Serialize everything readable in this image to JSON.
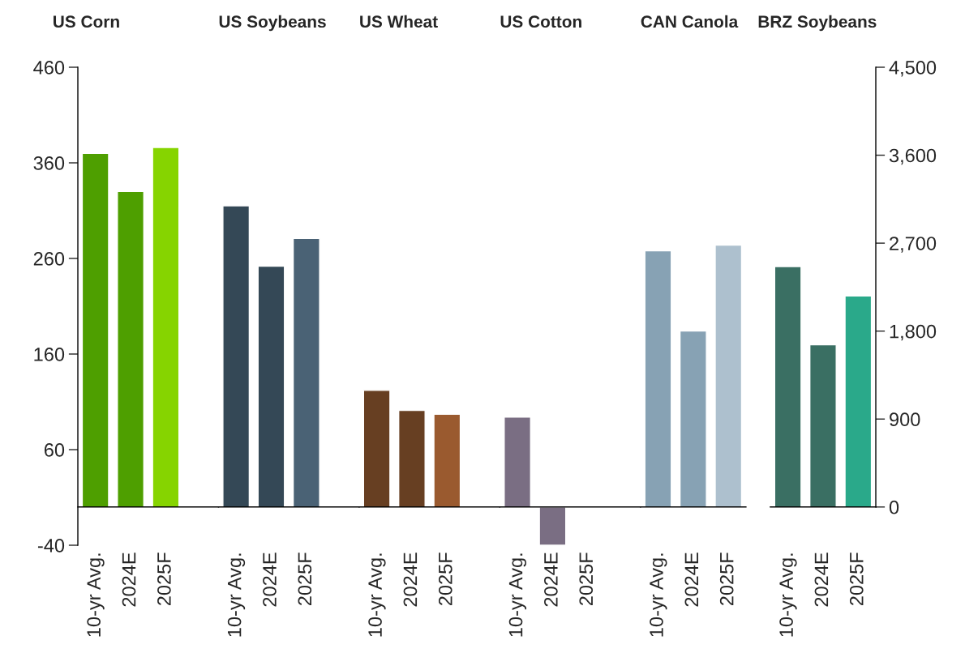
{
  "chart_data": [
    {
      "type": "bar",
      "title": "US Corn",
      "categories": [
        "10-yr Avg.",
        "2024E",
        "2025F"
      ],
      "values": [
        370,
        330,
        376
      ],
      "colors": [
        "#4e9f00",
        "#4e9f00",
        "#86d400"
      ],
      "ylim": [
        -40,
        460
      ],
      "yticks": [
        -40,
        60,
        160,
        260,
        360,
        460
      ],
      "grid": false,
      "legend": false
    },
    {
      "type": "bar",
      "title": "US Soybeans",
      "categories": [
        "10-yr Avg.",
        "2024E",
        "2025F"
      ],
      "values": [
        315,
        252,
        281
      ],
      "colors": [
        "#344856",
        "#344856",
        "#4a6275"
      ],
      "ylim": [
        -40,
        460
      ],
      "tick_labels": "x",
      "grid": false,
      "legend": false
    },
    {
      "type": "bar",
      "title": "US Wheat",
      "categories": [
        "10-yr Avg.",
        "2024E",
        "2025F"
      ],
      "values": [
        122,
        101,
        97
      ],
      "colors": [
        "#673f22",
        "#673f22",
        "#9a5a2f"
      ],
      "ylim": [
        -40,
        460
      ],
      "tick_labels": "x",
      "grid": false,
      "legend": false
    },
    {
      "type": "bar",
      "title": "US Cotton",
      "categories": [
        "10-yr Avg.",
        "2024E",
        "2025F"
      ],
      "values": [
        94,
        -40,
        null
      ],
      "colors": [
        "#7a6e83",
        "#7a6e83",
        "#7a6e83"
      ],
      "ylim": [
        -40,
        460
      ],
      "tick_labels": "x",
      "grid": false,
      "legend": false
    },
    {
      "type": "bar",
      "title": "CAN Canola",
      "categories": [
        "10-yr Avg.",
        "2024E",
        "2025F"
      ],
      "values": [
        268,
        184,
        274
      ],
      "colors": [
        "#87a2b4",
        "#87a2b4",
        "#adc0ce"
      ],
      "ylim": [
        -40,
        460
      ],
      "tick_labels": "x",
      "grid": false,
      "legend": false
    },
    {
      "type": "bar",
      "title": "BRZ Soybeans",
      "categories": [
        "10-yr Avg.",
        "2024E",
        "2025F"
      ],
      "series": [
        {
          "values": [
            2460,
            1660,
            2160
          ],
          "axis": "y2"
        }
      ],
      "colors": [
        "#3a6f63",
        "#3a6f63",
        "#2aa98a"
      ],
      "y2lim": [
        0,
        4500
      ],
      "y2ticks": [
        0,
        900,
        {
          "value": 1800,
          "label": "1,800"
        },
        {
          "value": 2700,
          "label": "2,700"
        },
        {
          "value": 3600,
          "label": "3,600"
        },
        {
          "value": 4500,
          "label": "4,500"
        }
      ],
      "grid": false,
      "legend": false
    }
  ]
}
